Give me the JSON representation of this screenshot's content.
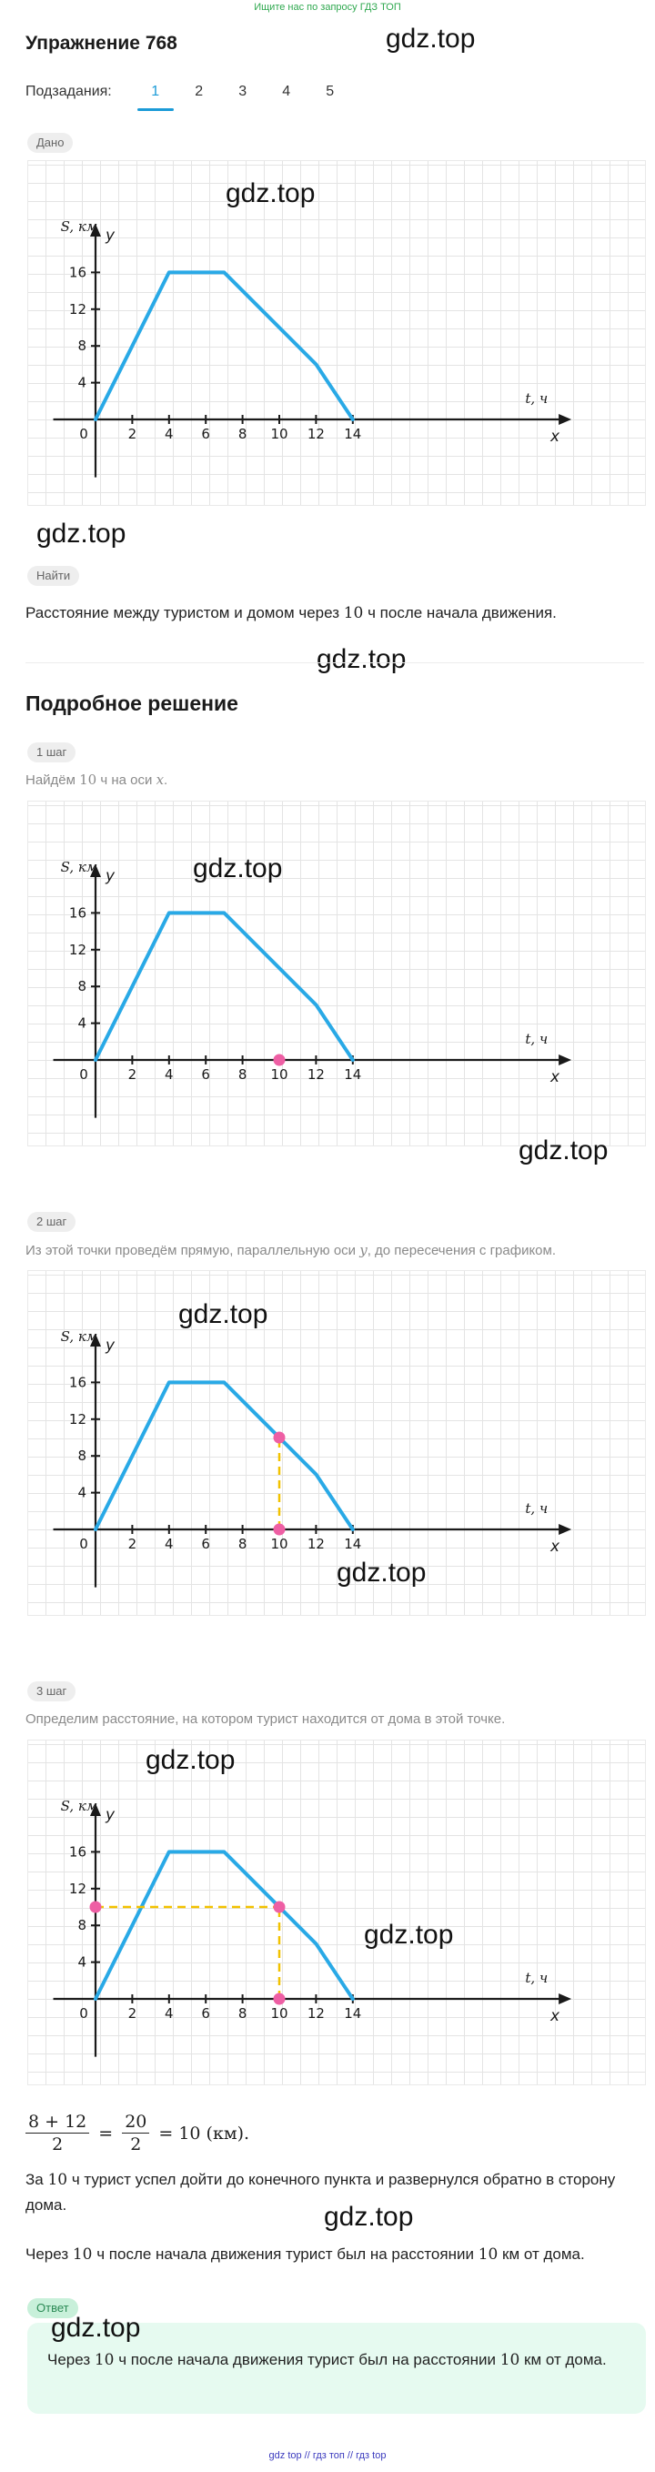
{
  "banner": "Ищите нас по запросу ГДЗ ТОП",
  "watermark": "gdz.top",
  "exercise_title": "Упражнение 768",
  "subtasks": {
    "label": "Подзадания:",
    "items": [
      "1",
      "2",
      "3",
      "4",
      "5"
    ],
    "active": 0
  },
  "given_label": "Дано",
  "find_label": "Найти",
  "find_text": "Расстояние между туристом и домом через 10 ч после начала движения.",
  "solution_title": "Подробное решение",
  "steps": [
    {
      "label": "1 шаг",
      "text": "Найдём 10 ч на оси x."
    },
    {
      "label": "2 шаг",
      "text": "Из этой точки проведём прямую, параллельную оси y, до пересечения с графиком."
    },
    {
      "label": "3 шаг",
      "text": "Определим расстояние, на котором турист находится от дома в этой точке."
    }
  ],
  "formula": {
    "a": "8 + 12",
    "b": "2",
    "c": "20",
    "d": "2",
    "result": "= 10 (км)."
  },
  "explain1": "За 10 ч турист успел дойти до конечного пункта и развернулся обратно в сторону дома.",
  "explain2": "Через 10 ч после начала движения турист был на расстоянии 10 км от дома.",
  "answer_label": "Ответ",
  "answer_text": "Через 10 ч после начала движения турист был на расстоянии 10 км от дома.",
  "footer": "gdz top // гдз топ // гдз top",
  "chart_data": {
    "type": "line",
    "x": [
      0,
      4,
      7,
      12,
      14
    ],
    "values": [
      0,
      16,
      16,
      6,
      0
    ],
    "xticks": [
      "0",
      "2",
      "4",
      "6",
      "8",
      "10",
      "12",
      "14"
    ],
    "yticks": [
      "4",
      "8",
      "12",
      "16"
    ],
    "x_axis_name": "x",
    "y_axis_name": "y",
    "x_unit_label": "t, ч",
    "y_unit_label": "S, км",
    "xlim": [
      -3,
      27
    ],
    "ylim": [
      -6,
      22
    ],
    "grid": true,
    "colors": {
      "line": "#29a9e6",
      "marker": "#ee5fa4",
      "guide": "#f2c200",
      "axis": "#1a1a1a",
      "grid": "#e4e4e4"
    }
  }
}
